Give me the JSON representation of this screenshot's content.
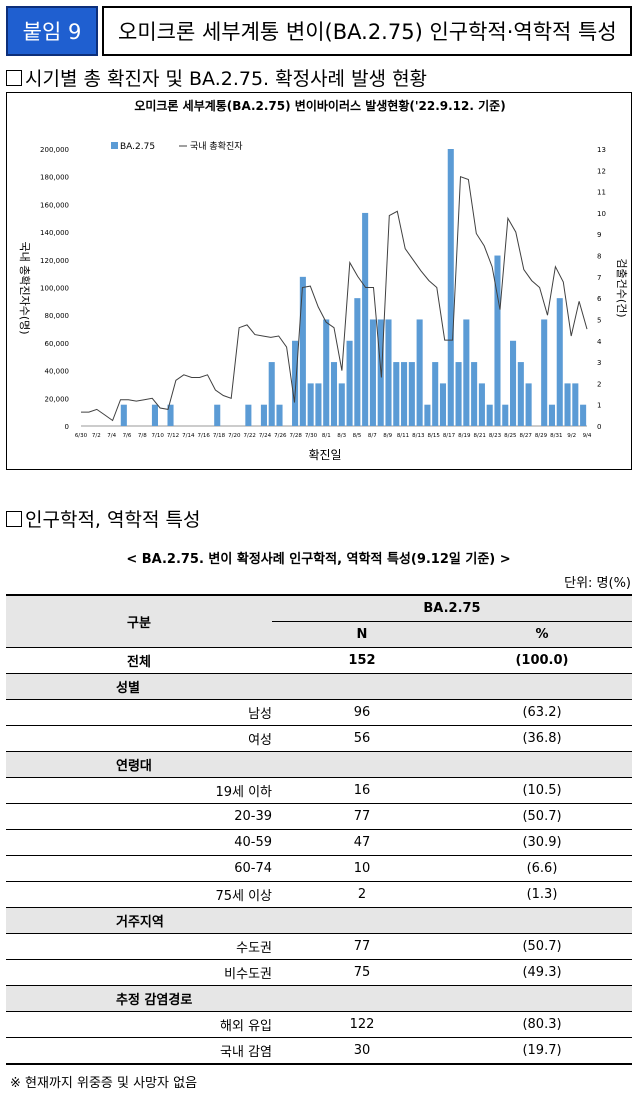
{
  "header": {
    "badge": "붙임 9",
    "title": "오미크론 세부계통 변이(BA.2.75) 인구학적·역학적 특성"
  },
  "section1": {
    "title": "시기별 총 확진자 및 BA.2.75. 확정사례 발생 현황"
  },
  "chart_data": {
    "type": "bar+line",
    "title": "오미크론 세부계통(BA.2.75) 변이바이러스 발생현황('22.9.12. 기준)",
    "xlabel": "확진일",
    "ylabel_left": "국내 총확진자수(명)",
    "ylabel_right": "검출건수(건)",
    "legend": [
      "BA.2.75",
      "국내 총확진자"
    ],
    "legend_position": "top-left",
    "left_ticks": [
      "200,000",
      "180,000",
      "160,000",
      "140,000",
      "120,000",
      "100,000",
      "80,000",
      "60,000",
      "40,000",
      "20,000",
      "0"
    ],
    "left_ylim": [
      0,
      200000
    ],
    "right_ticks": [
      "13",
      "12",
      "11",
      "10",
      "9",
      "8",
      "7",
      "6",
      "5",
      "4",
      "3",
      "2",
      "1",
      "0"
    ],
    "right_ylim": [
      0,
      13
    ],
    "x_tick_labels": [
      "6/30",
      "7/2",
      "7/4",
      "7/6",
      "7/8",
      "7/10",
      "7/12",
      "7/14",
      "7/16",
      "7/18",
      "7/20",
      "7/22",
      "7/24",
      "7/26",
      "7/28",
      "7/30",
      "8/1",
      "8/3",
      "8/5",
      "8/7",
      "8/9",
      "8/11",
      "8/13",
      "8/15",
      "8/17",
      "8/19",
      "8/21",
      "8/23",
      "8/25",
      "8/27",
      "8/29",
      "8/31",
      "9/2",
      "9/4"
    ],
    "series": [
      {
        "name": "BA.2.75",
        "axis": "right",
        "values": [
          0,
          0,
          0,
          0,
          0,
          1,
          0,
          0,
          0,
          1,
          0,
          1,
          0,
          0,
          0,
          0,
          0,
          1,
          0,
          0,
          0,
          1,
          0,
          1,
          3,
          1,
          0,
          4,
          7,
          2,
          2,
          5,
          3,
          2,
          4,
          6,
          10,
          5,
          5,
          5,
          3,
          3,
          3,
          5,
          1,
          3,
          2,
          13,
          3,
          5,
          3,
          2,
          1,
          8,
          1,
          4,
          3,
          2,
          0,
          5,
          1,
          6,
          2,
          2,
          1
        ]
      },
      {
        "name": "국내 총확진자",
        "axis": "left",
        "values": [
          10000,
          10000,
          12000,
          8000,
          4000,
          19000,
          19000,
          18000,
          19000,
          20000,
          13000,
          12000,
          33000,
          37000,
          35000,
          35000,
          37000,
          26000,
          22000,
          20000,
          71000,
          73000,
          66000,
          65000,
          64000,
          65000,
          57000,
          17000,
          100000,
          101000,
          86000,
          75000,
          71000,
          40000,
          118000,
          108000,
          100000,
          100000,
          35000,
          152000,
          155000,
          128000,
          120000,
          112000,
          105000,
          100000,
          62000,
          62000,
          180000,
          178000,
          139000,
          130000,
          115000,
          84000,
          150000,
          140000,
          113000,
          105000,
          100000,
          80000,
          115000,
          104000,
          65000,
          90000,
          70000
        ]
      }
    ]
  },
  "section2": {
    "title": "인구학적, 역학적 특성"
  },
  "table": {
    "caption": "< BA.2.75. 변이 확정사례 인구학적, 역학적 특성(9.12일 기준) >",
    "unit": "단위: 명(%)",
    "col_group": "구분",
    "col_variant": "BA.2.75",
    "col_n": "N",
    "col_pct": "%",
    "total_label": "전체",
    "total_n": "152",
    "total_pct": "(100.0)",
    "groups": [
      {
        "label": "성별",
        "rows": [
          {
            "label": "남성",
            "n": "96",
            "pct": "(63.2)"
          },
          {
            "label": "여성",
            "n": "56",
            "pct": "(36.8)"
          }
        ]
      },
      {
        "label": "연령대",
        "rows": [
          {
            "label": "19세 이하",
            "n": "16",
            "pct": "(10.5)"
          },
          {
            "label": "20-39",
            "n": "77",
            "pct": "(50.7)"
          },
          {
            "label": "40-59",
            "n": "47",
            "pct": "(30.9)"
          },
          {
            "label": "60-74",
            "n": "10",
            "pct": "(6.6)"
          },
          {
            "label": "75세 이상",
            "n": "2",
            "pct": "(1.3)"
          }
        ]
      },
      {
        "label": "거주지역",
        "rows": [
          {
            "label": "수도권",
            "n": "77",
            "pct": "(50.7)"
          },
          {
            "label": "비수도권",
            "n": "75",
            "pct": "(49.3)"
          }
        ]
      },
      {
        "label": "추정 감염경로",
        "rows": [
          {
            "label": "해외 유입",
            "n": "122",
            "pct": "(80.3)"
          },
          {
            "label": "국내 감염",
            "n": "30",
            "pct": "(19.7)"
          }
        ]
      }
    ]
  },
  "note": "※ 현재까지 위중증 및 사망자 없음",
  "colors": {
    "bar": "#5b9bd5",
    "line": "#404040",
    "badge": "#1f5fd0"
  }
}
